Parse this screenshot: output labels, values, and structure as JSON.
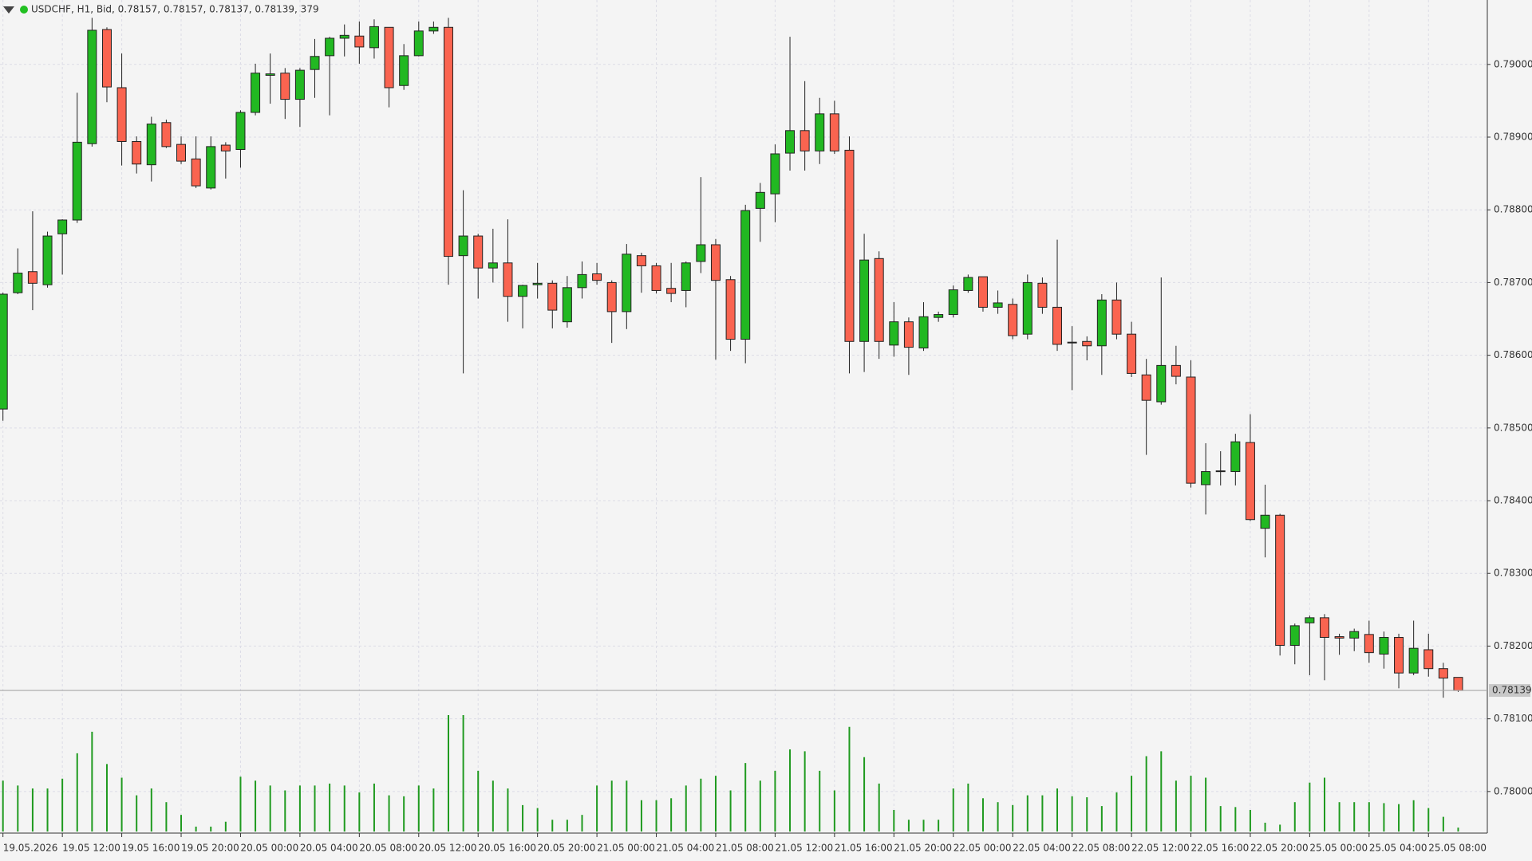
{
  "chart_data": {
    "type": "candlestick",
    "title": "USDCHF, H1, Bid, 0.78157, 0.78157, 0.78137, 0.78139, 379",
    "categories": [
      "19.05.2026",
      null,
      null,
      null,
      "19.05 12:00",
      null,
      null,
      null,
      "19.05 16:00",
      null,
      null,
      null,
      "19.05 20:00",
      null,
      null,
      null,
      "20.05 00:00",
      null,
      null,
      null,
      "20.05 04:00",
      null,
      null,
      null,
      "20.05 08:00",
      null,
      null,
      null,
      "20.05 12:00",
      null,
      null,
      null,
      "20.05 16:00",
      null,
      null,
      null,
      "20.05 20:00",
      null,
      null,
      null,
      "21.05 00:00",
      null,
      null,
      null,
      "21.05 04:00",
      null,
      null,
      null,
      "21.05 08:00",
      null,
      null,
      null,
      "21.05 12:00",
      null,
      null,
      null,
      "21.05 16:00",
      null,
      null,
      null,
      "21.05 20:00",
      null,
      null,
      null,
      "22.05 00:00",
      null,
      null,
      null,
      "22.05 04:00",
      null,
      null,
      null,
      "22.05 08:00",
      null,
      null,
      null,
      "22.05 12:00",
      null,
      null,
      null,
      "22.05 16:00",
      null,
      null,
      null,
      "22.05 20:00",
      null,
      null,
      null,
      "25.05 00:00",
      null,
      null,
      null,
      "25.05 04:00",
      null,
      null,
      null,
      "25.05 08:00",
      null,
      null
    ],
    "open": [
      0.78526,
      0.78686,
      0.78715,
      0.78697,
      0.78767,
      0.78786,
      0.78891,
      0.79048,
      0.78968,
      0.78894,
      0.78862,
      0.7892,
      0.7889,
      0.7887,
      0.7883,
      0.78889,
      0.78883,
      0.78934,
      0.78985,
      0.78988,
      0.78952,
      0.78993,
      0.79012,
      0.79036,
      0.79039,
      0.79023,
      0.79051,
      0.78971,
      0.79012,
      0.79046,
      0.79051,
      0.78737,
      0.78764,
      0.7872,
      0.78727,
      0.78681,
      0.78697,
      0.78699,
      0.78646,
      0.78693,
      0.78712,
      0.787,
      0.7866,
      0.78737,
      0.78723,
      0.78692,
      0.78689,
      0.78729,
      0.78752,
      0.78704,
      0.78622,
      0.78802,
      0.78822,
      0.78878,
      0.78909,
      0.78881,
      0.78932,
      0.78882,
      0.78619,
      0.78733,
      0.78614,
      0.78646,
      0.7861,
      0.78652,
      0.78656,
      0.78689,
      0.78708,
      0.78666,
      0.7867,
      0.78629,
      0.78699,
      0.78666,
      0.78617,
      0.78619,
      0.78613,
      0.78676,
      0.78629,
      0.78573,
      0.78536,
      0.78586,
      0.7857,
      0.78422,
      0.7844,
      0.7844,
      0.7848,
      0.78362,
      0.7838,
      0.78201,
      0.78232,
      0.78239,
      0.78213,
      0.78211,
      0.78216,
      0.78189,
      0.78212,
      0.78163,
      0.78195,
      0.78169,
      0.78157
    ],
    "high": [
      0.78686,
      0.78747,
      0.78798,
      0.7877,
      0.78787,
      0.78961,
      0.79064,
      0.79051,
      0.79015,
      0.78901,
      0.78928,
      0.78924,
      0.78901,
      0.78901,
      0.78901,
      0.78893,
      0.78937,
      0.79001,
      0.79015,
      0.78995,
      0.78995,
      0.79035,
      0.79038,
      0.79055,
      0.79059,
      0.79062,
      0.79051,
      0.79028,
      0.79059,
      0.79059,
      0.79064,
      0.78827,
      0.78767,
      0.78774,
      0.78787,
      0.78697,
      0.78727,
      0.78703,
      0.78709,
      0.78729,
      0.78727,
      0.78703,
      0.78753,
      0.78741,
      0.78727,
      0.78727,
      0.78729,
      0.78845,
      0.7876,
      0.78709,
      0.78807,
      0.78837,
      0.7889,
      0.79038,
      0.78977,
      0.78954,
      0.7895,
      0.78901,
      0.78767,
      0.78743,
      0.78673,
      0.78652,
      0.78673,
      0.7866,
      0.78696,
      0.78711,
      0.78708,
      0.78689,
      0.78678,
      0.78711,
      0.78707,
      0.78759,
      0.7864,
      0.78626,
      0.78684,
      0.787,
      0.78646,
      0.78595,
      0.78707,
      0.78613,
      0.78593,
      0.78479,
      0.78468,
      0.78492,
      0.78519,
      0.78422,
      0.78382,
      0.78231,
      0.78242,
      0.78244,
      0.78217,
      0.78224,
      0.78235,
      0.7822,
      0.78217,
      0.78235,
      0.78217,
      0.78177,
      0.78157
    ],
    "low": [
      0.7851,
      0.78684,
      0.78662,
      0.78693,
      0.78711,
      0.78782,
      0.78887,
      0.78948,
      0.78861,
      0.7885,
      0.78839,
      0.78885,
      0.78863,
      0.7883,
      0.78828,
      0.78843,
      0.78858,
      0.7893,
      0.78946,
      0.78925,
      0.78914,
      0.78954,
      0.7893,
      0.79011,
      0.79001,
      0.79008,
      0.78941,
      0.78965,
      0.79011,
      0.79042,
      0.78697,
      0.78575,
      0.78678,
      0.787,
      0.78646,
      0.78637,
      0.78678,
      0.78637,
      0.78638,
      0.78678,
      0.78697,
      0.78617,
      0.78636,
      0.78686,
      0.78685,
      0.78673,
      0.78666,
      0.78713,
      0.78594,
      0.78606,
      0.78589,
      0.78756,
      0.78783,
      0.78854,
      0.78854,
      0.78863,
      0.78877,
      0.78575,
      0.78577,
      0.78595,
      0.78598,
      0.78573,
      0.78606,
      0.78646,
      0.78652,
      0.78686,
      0.7866,
      0.78657,
      0.78622,
      0.78622,
      0.78657,
      0.78606,
      0.78552,
      0.78593,
      0.78573,
      0.78622,
      0.7857,
      0.78463,
      0.78532,
      0.7856,
      0.78418,
      0.78381,
      0.78421,
      0.78421,
      0.78372,
      0.78322,
      0.78187,
      0.78175,
      0.7816,
      0.78153,
      0.78188,
      0.78193,
      0.78177,
      0.78169,
      0.78142,
      0.7816,
      0.78158,
      0.78129,
      0.78137
    ],
    "close": [
      0.78684,
      0.78713,
      0.78699,
      0.78764,
      0.78786,
      0.78893,
      0.79047,
      0.78969,
      0.78894,
      0.78863,
      0.78918,
      0.78887,
      0.78867,
      0.78833,
      0.78887,
      0.78881,
      0.78934,
      0.78988,
      0.78987,
      0.78952,
      0.78992,
      0.79011,
      0.79036,
      0.7904,
      0.79024,
      0.79052,
      0.78968,
      0.79012,
      0.79046,
      0.79051,
      0.78736,
      0.78764,
      0.7872,
      0.78727,
      0.78681,
      0.78696,
      0.78699,
      0.78662,
      0.78693,
      0.78711,
      0.78703,
      0.7866,
      0.78739,
      0.78723,
      0.78689,
      0.78685,
      0.78727,
      0.78752,
      0.78703,
      0.78622,
      0.78799,
      0.78824,
      0.78877,
      0.78909,
      0.78881,
      0.78932,
      0.78881,
      0.78619,
      0.78731,
      0.78619,
      0.78646,
      0.78611,
      0.78653,
      0.78656,
      0.7869,
      0.78707,
      0.78666,
      0.78672,
      0.78627,
      0.787,
      0.78666,
      0.78615,
      0.78618,
      0.78613,
      0.78676,
      0.78629,
      0.78575,
      0.78538,
      0.78586,
      0.78571,
      0.78424,
      0.7844,
      0.78441,
      0.78481,
      0.78374,
      0.7838,
      0.78201,
      0.78228,
      0.78239,
      0.78212,
      0.78211,
      0.7822,
      0.78191,
      0.78212,
      0.78163,
      0.78197,
      0.78169,
      0.78156,
      0.78139
    ],
    "volume": [
      4940,
      4465,
      4180,
      4180,
      5130,
      7600,
      9690,
      6555,
      5225,
      3515,
      4180,
      2850,
      1615,
      475,
      475,
      950,
      5320,
      4940,
      4465,
      3990,
      4465,
      4465,
      4655,
      4465,
      3800,
      4655,
      3515,
      3420,
      4465,
      4180,
      11305,
      11305,
      5890,
      4940,
      4180,
      2565,
      2280,
      1140,
      1140,
      1615,
      4465,
      4940,
      4940,
      3040,
      3040,
      3230,
      4465,
      5130,
      5415,
      3990,
      6650,
      4940,
      5890,
      7980,
      7790,
      5890,
      3990,
      10165,
      7220,
      4655,
      2090,
      1140,
      1140,
      1140,
      4180,
      4655,
      3230,
      2850,
      2565,
      3515,
      3515,
      4180,
      3420,
      3325,
      2470,
      3800,
      5415,
      7315,
      7790,
      4940,
      5415,
      5225,
      2470,
      2375,
      2090,
      855,
      665,
      2850,
      4750,
      5225,
      2850,
      2850,
      2850,
      2755,
      2660,
      3040,
      2280,
      1425,
      379
    ],
    "up_color": "#22b822",
    "down_color": "#fa6450",
    "volume_color": "#1f9a1f",
    "ylim": [
      0.77945,
      0.790886
    ],
    "yticks": [
      {
        "value": 0.78,
        "label": "0.78000"
      },
      {
        "value": 0.781,
        "label": "0.78100"
      },
      {
        "value": 0.782,
        "label": "0.78200"
      },
      {
        "value": 0.783,
        "label": "0.78300"
      },
      {
        "value": 0.784,
        "label": "0.78400"
      },
      {
        "value": 0.785,
        "label": "0.78500"
      },
      {
        "value": 0.786,
        "label": "0.78600"
      },
      {
        "value": 0.787,
        "label": "0.78700"
      },
      {
        "value": 0.788,
        "label": "0.78800"
      },
      {
        "value": 0.789,
        "label": "0.78900"
      },
      {
        "value": 0.79,
        "label": "0.79000"
      }
    ],
    "grid": true
  }
}
